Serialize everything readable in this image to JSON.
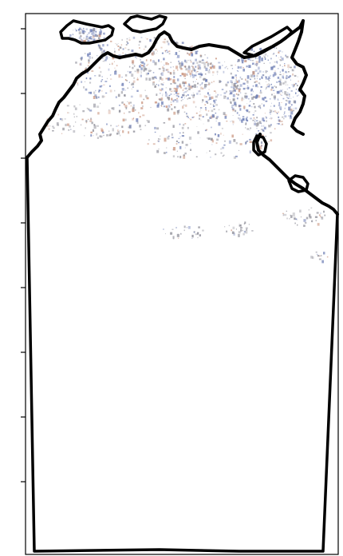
{
  "map": {
    "palette": {
      "blue": "#6f7fb6",
      "salmon": "#c9947e",
      "gray": "#8f8f99",
      "outline": "#000000"
    },
    "left_tick_count": 8
  }
}
